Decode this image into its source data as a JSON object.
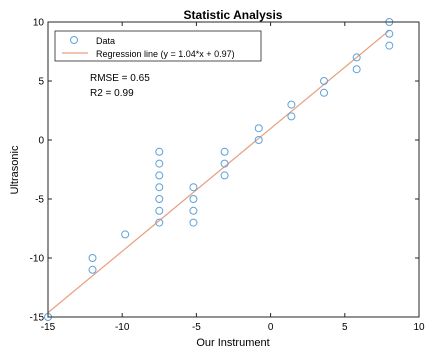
{
  "chart_data": {
    "type": "scatter",
    "title": "Statistic Analysis",
    "xlabel": "Our Instrument",
    "ylabel": "Ultrasonic",
    "xlim": [
      -15,
      10
    ],
    "ylim": [
      -15,
      10
    ],
    "xticks": [
      -15,
      -10,
      -5,
      0,
      5,
      10
    ],
    "yticks": [
      -15,
      -10,
      -5,
      0,
      5,
      10
    ],
    "grid": false,
    "legend_position": "top-left",
    "series": [
      {
        "name": "Data",
        "marker": "circle",
        "color": "#5fa2d9",
        "points": [
          [
            -15,
            -15
          ],
          [
            -12,
            -10
          ],
          [
            -12,
            -11
          ],
          [
            -9.8,
            -8
          ],
          [
            -7.5,
            -1
          ],
          [
            -7.5,
            -2
          ],
          [
            -7.5,
            -3
          ],
          [
            -7.5,
            -4
          ],
          [
            -7.5,
            -5
          ],
          [
            -7.5,
            -6
          ],
          [
            -7.5,
            -7
          ],
          [
            -5.2,
            -4
          ],
          [
            -5.2,
            -5
          ],
          [
            -5.2,
            -6
          ],
          [
            -5.2,
            -7
          ],
          [
            -3.1,
            -1
          ],
          [
            -3.1,
            -2
          ],
          [
            -3.1,
            -3
          ],
          [
            -0.8,
            1
          ],
          [
            -0.8,
            0
          ],
          [
            1.4,
            3
          ],
          [
            1.4,
            2
          ],
          [
            3.6,
            5
          ],
          [
            3.6,
            4
          ],
          [
            5.8,
            7
          ],
          [
            5.8,
            6
          ],
          [
            8,
            10
          ],
          [
            8,
            9
          ],
          [
            8,
            8
          ]
        ]
      },
      {
        "name": "Regression line (y = 1.04*x + 0.97)",
        "type": "line",
        "color": "#e8a07e",
        "slope": 1.04,
        "intercept": 0.97,
        "x_range": [
          -15,
          8
        ]
      }
    ],
    "annotations": [
      "RMSE = 0.65",
      "R2 = 0.99"
    ]
  }
}
